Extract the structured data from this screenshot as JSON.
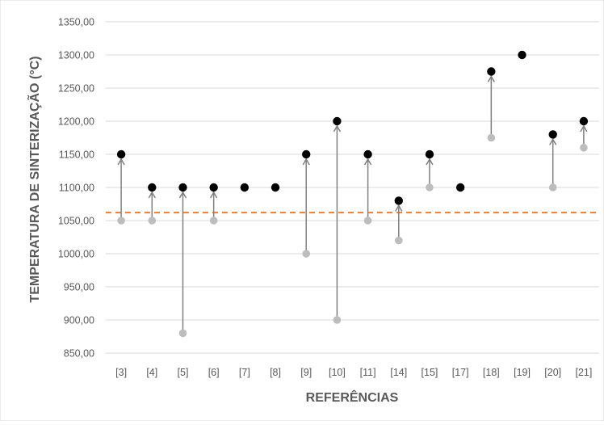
{
  "chart_data": {
    "type": "scatter",
    "ylabel": "TEMPERATURA DE SINTERIZAÇÃO (°C)",
    "xlabel": "REFERÊNCIAS",
    "ylim": [
      850,
      1350
    ],
    "y_ticks": [
      850,
      900,
      950,
      1000,
      1050,
      1100,
      1150,
      1200,
      1250,
      1300,
      1350
    ],
    "y_tick_labels": [
      "850,00",
      "900,00",
      "950,00",
      "1000,00",
      "1050,00",
      "1100,00",
      "1150,00",
      "1200,00",
      "1250,00",
      "1300,00",
      "1350,00"
    ],
    "grid": "horizontal",
    "categories": [
      "[3]",
      "[4]",
      "[5]",
      "[6]",
      "[7]",
      "[8]",
      "[9]",
      "[10]",
      "[11]",
      "[14]",
      "[15]",
      "[17]",
      "[18]",
      "[19]",
      "[20]",
      "[21]"
    ],
    "series": [
      {
        "values": [
          1050,
          1050,
          880,
          1050,
          null,
          null,
          1000,
          900,
          1050,
          1020,
          1100,
          null,
          1175,
          null,
          1100,
          1160
        ]
      },
      {
        "values": [
          1150,
          1100,
          1100,
          1100,
          1100,
          1100,
          1150,
          1200,
          1150,
          1080,
          1150,
          1100,
          1275,
          1300,
          1180,
          1200
        ]
      }
    ],
    "reference_line": {
      "y": 1062
    },
    "colors": {
      "low_marker": "#bdbdbd",
      "high_marker": "#000000",
      "arrow": "#7f7f7f",
      "reference_line": "#ed7d31",
      "grid": "#d9d9d9",
      "axis_text": "#595959"
    }
  }
}
